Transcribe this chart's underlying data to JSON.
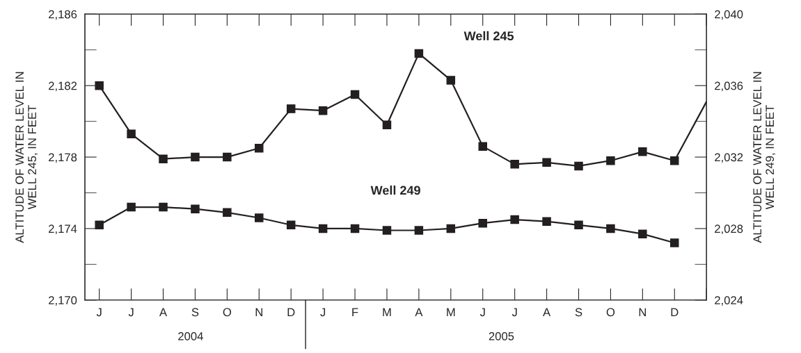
{
  "chart_data": {
    "type": "line",
    "ylabel": "ALTITUDE OF WATER LEVEL IN\nWELL 245, IN FEET",
    "y2label": "ALTITUDE OF WATER LEVEL IN\nWELL 249, IN FEET",
    "categories": [
      "J",
      "J",
      "A",
      "S",
      "O",
      "N",
      "D",
      "J",
      "F",
      "M",
      "A",
      "M",
      "J",
      "J",
      "A",
      "S",
      "O",
      "N",
      "D",
      null
    ],
    "ylim": [
      2170,
      2186
    ],
    "yticks": [
      {
        "value": 2170,
        "label": "2,170"
      },
      {
        "value": 2174,
        "label": "2,174"
      },
      {
        "value": 2178,
        "label": "2,178"
      },
      {
        "value": 2182,
        "label": "2,182"
      },
      {
        "value": 2186,
        "label": "2,186"
      }
    ],
    "y2lim": [
      2024,
      2040
    ],
    "y2ticks": [
      {
        "value": 2024,
        "label": "2,024"
      },
      {
        "value": 2028,
        "label": "2,028"
      },
      {
        "value": 2032,
        "label": "2,032"
      },
      {
        "value": 2036,
        "label": "2,036"
      },
      {
        "value": 2040,
        "label": "2,040"
      }
    ],
    "marker": "square",
    "grid": false,
    "series": [
      {
        "color": "#231f20",
        "values": [
          2182.0,
          2179.3,
          2177.9,
          2178.0,
          2178.0,
          2178.5,
          2180.7,
          2180.6,
          2181.5,
          2179.8,
          2183.8,
          2182.3,
          2178.6,
          2177.6,
          2177.7,
          2177.5,
          2177.8,
          2178.3,
          2177.8,
          2181.1
        ]
      },
      {
        "color": "#231f20",
        "axis": "y2",
        "values": [
          2028.2,
          2029.2,
          2029.2,
          2029.1,
          2028.9,
          2028.6,
          2028.2,
          2028.0,
          2028.0,
          2027.9,
          2027.9,
          2028.0,
          2028.3,
          2028.5,
          2028.4,
          2028.2,
          2028.0,
          2027.7,
          2027.2,
          null
        ]
      }
    ],
    "annotations": [
      "Well 245",
      "Well 249",
      "2004",
      "2005"
    ]
  }
}
